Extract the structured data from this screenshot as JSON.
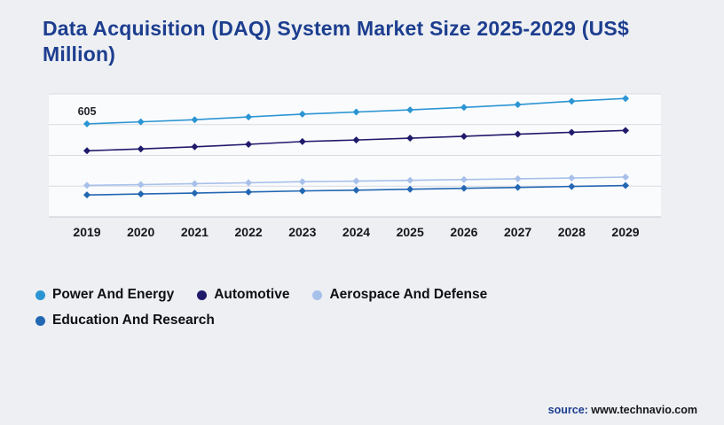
{
  "page": {
    "title": "Data Acquisition (DAQ) System Market Size 2025-2029 (US$ Million)",
    "source_label": "source:",
    "source_value": "www.technavio.com",
    "background_color": "#edeff3",
    "title_color": "#1d3e8f"
  },
  "chart_data": {
    "type": "line",
    "title": "Data Acquisition (DAQ) System Market Size 2025-2029 (US$ Million)",
    "categories": [
      "2019",
      "2020",
      "2021",
      "2022",
      "2023",
      "2024",
      "2025",
      "2026",
      "2027",
      "2028",
      "2029"
    ],
    "series": [
      {
        "name": "Power And Energy",
        "color": "#2b95d3",
        "values": [
          605,
          618,
          632,
          650,
          668,
          682,
          696,
          712,
          730,
          752,
          770
        ]
      },
      {
        "name": "Automotive",
        "color": "#201a6b",
        "values": [
          430,
          442,
          456,
          472,
          490,
          500,
          512,
          524,
          538,
          550,
          562
        ]
      },
      {
        "name": "Aerospace And Defense",
        "color": "#a7c0ea",
        "values": [
          205,
          210,
          216,
          222,
          229,
          233,
          238,
          243,
          248,
          253,
          259
        ]
      },
      {
        "name": "Education And Research",
        "color": "#2367b3",
        "values": [
          143,
          149,
          155,
          162,
          169,
          174,
          180,
          186,
          192,
          198,
          204
        ]
      }
    ],
    "annotation": {
      "series_index": 0,
      "category_index": 0,
      "text": "605"
    },
    "xlabel": "",
    "ylabel": "",
    "ylim": [
      0,
      800
    ],
    "gridline_values": [
      0,
      200,
      400,
      600,
      800
    ],
    "grid": "horizontal",
    "marker": "diamond",
    "legend_position": "bottom-left"
  }
}
